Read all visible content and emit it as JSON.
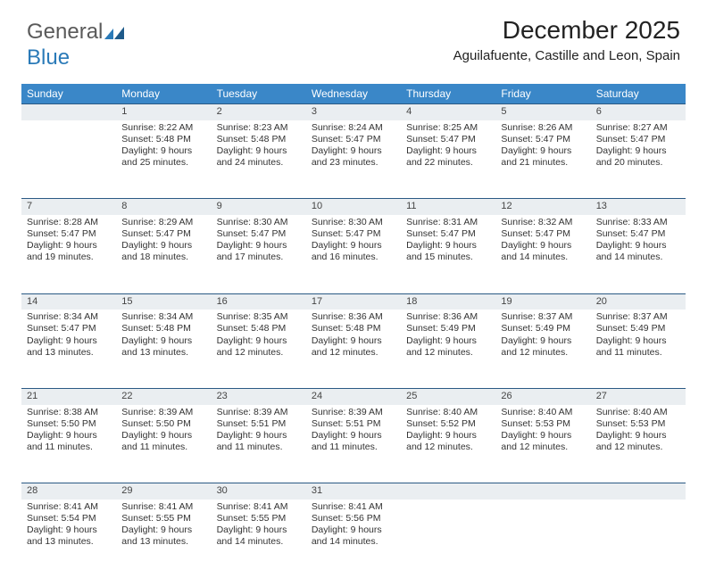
{
  "brand": {
    "part1": "General",
    "part2": "Blue"
  },
  "title": "December 2025",
  "location": "Aguilafuente, Castille and Leon, Spain",
  "colors": {
    "header_bg": "#3a87c8",
    "header_text": "#ffffff",
    "daynum_bg": "#eaeef1",
    "daynum_border": "#2b5a84",
    "body_bg": "#ffffff",
    "text": "#333333",
    "brand_gray": "#5a5a5a",
    "brand_blue": "#2a7ab8"
  },
  "typography": {
    "title_fontsize": 28,
    "location_fontsize": 15,
    "dayheader_fontsize": 12,
    "cell_fontsize": 10.5
  },
  "day_headers": [
    "Sunday",
    "Monday",
    "Tuesday",
    "Wednesday",
    "Thursday",
    "Friday",
    "Saturday"
  ],
  "weeks": [
    {
      "nums": [
        "",
        "1",
        "2",
        "3",
        "4",
        "5",
        "6"
      ],
      "cells": [
        {
          "sunrise": "",
          "sunset": "",
          "daylight": ""
        },
        {
          "sunrise": "Sunrise: 8:22 AM",
          "sunset": "Sunset: 5:48 PM",
          "daylight": "Daylight: 9 hours and 25 minutes."
        },
        {
          "sunrise": "Sunrise: 8:23 AM",
          "sunset": "Sunset: 5:48 PM",
          "daylight": "Daylight: 9 hours and 24 minutes."
        },
        {
          "sunrise": "Sunrise: 8:24 AM",
          "sunset": "Sunset: 5:47 PM",
          "daylight": "Daylight: 9 hours and 23 minutes."
        },
        {
          "sunrise": "Sunrise: 8:25 AM",
          "sunset": "Sunset: 5:47 PM",
          "daylight": "Daylight: 9 hours and 22 minutes."
        },
        {
          "sunrise": "Sunrise: 8:26 AM",
          "sunset": "Sunset: 5:47 PM",
          "daylight": "Daylight: 9 hours and 21 minutes."
        },
        {
          "sunrise": "Sunrise: 8:27 AM",
          "sunset": "Sunset: 5:47 PM",
          "daylight": "Daylight: 9 hours and 20 minutes."
        }
      ]
    },
    {
      "nums": [
        "7",
        "8",
        "9",
        "10",
        "11",
        "12",
        "13"
      ],
      "cells": [
        {
          "sunrise": "Sunrise: 8:28 AM",
          "sunset": "Sunset: 5:47 PM",
          "daylight": "Daylight: 9 hours and 19 minutes."
        },
        {
          "sunrise": "Sunrise: 8:29 AM",
          "sunset": "Sunset: 5:47 PM",
          "daylight": "Daylight: 9 hours and 18 minutes."
        },
        {
          "sunrise": "Sunrise: 8:30 AM",
          "sunset": "Sunset: 5:47 PM",
          "daylight": "Daylight: 9 hours and 17 minutes."
        },
        {
          "sunrise": "Sunrise: 8:30 AM",
          "sunset": "Sunset: 5:47 PM",
          "daylight": "Daylight: 9 hours and 16 minutes."
        },
        {
          "sunrise": "Sunrise: 8:31 AM",
          "sunset": "Sunset: 5:47 PM",
          "daylight": "Daylight: 9 hours and 15 minutes."
        },
        {
          "sunrise": "Sunrise: 8:32 AM",
          "sunset": "Sunset: 5:47 PM",
          "daylight": "Daylight: 9 hours and 14 minutes."
        },
        {
          "sunrise": "Sunrise: 8:33 AM",
          "sunset": "Sunset: 5:47 PM",
          "daylight": "Daylight: 9 hours and 14 minutes."
        }
      ]
    },
    {
      "nums": [
        "14",
        "15",
        "16",
        "17",
        "18",
        "19",
        "20"
      ],
      "cells": [
        {
          "sunrise": "Sunrise: 8:34 AM",
          "sunset": "Sunset: 5:47 PM",
          "daylight": "Daylight: 9 hours and 13 minutes."
        },
        {
          "sunrise": "Sunrise: 8:34 AM",
          "sunset": "Sunset: 5:48 PM",
          "daylight": "Daylight: 9 hours and 13 minutes."
        },
        {
          "sunrise": "Sunrise: 8:35 AM",
          "sunset": "Sunset: 5:48 PM",
          "daylight": "Daylight: 9 hours and 12 minutes."
        },
        {
          "sunrise": "Sunrise: 8:36 AM",
          "sunset": "Sunset: 5:48 PM",
          "daylight": "Daylight: 9 hours and 12 minutes."
        },
        {
          "sunrise": "Sunrise: 8:36 AM",
          "sunset": "Sunset: 5:49 PM",
          "daylight": "Daylight: 9 hours and 12 minutes."
        },
        {
          "sunrise": "Sunrise: 8:37 AM",
          "sunset": "Sunset: 5:49 PM",
          "daylight": "Daylight: 9 hours and 12 minutes."
        },
        {
          "sunrise": "Sunrise: 8:37 AM",
          "sunset": "Sunset: 5:49 PM",
          "daylight": "Daylight: 9 hours and 11 minutes."
        }
      ]
    },
    {
      "nums": [
        "21",
        "22",
        "23",
        "24",
        "25",
        "26",
        "27"
      ],
      "cells": [
        {
          "sunrise": "Sunrise: 8:38 AM",
          "sunset": "Sunset: 5:50 PM",
          "daylight": "Daylight: 9 hours and 11 minutes."
        },
        {
          "sunrise": "Sunrise: 8:39 AM",
          "sunset": "Sunset: 5:50 PM",
          "daylight": "Daylight: 9 hours and 11 minutes."
        },
        {
          "sunrise": "Sunrise: 8:39 AM",
          "sunset": "Sunset: 5:51 PM",
          "daylight": "Daylight: 9 hours and 11 minutes."
        },
        {
          "sunrise": "Sunrise: 8:39 AM",
          "sunset": "Sunset: 5:51 PM",
          "daylight": "Daylight: 9 hours and 11 minutes."
        },
        {
          "sunrise": "Sunrise: 8:40 AM",
          "sunset": "Sunset: 5:52 PM",
          "daylight": "Daylight: 9 hours and 12 minutes."
        },
        {
          "sunrise": "Sunrise: 8:40 AM",
          "sunset": "Sunset: 5:53 PM",
          "daylight": "Daylight: 9 hours and 12 minutes."
        },
        {
          "sunrise": "Sunrise: 8:40 AM",
          "sunset": "Sunset: 5:53 PM",
          "daylight": "Daylight: 9 hours and 12 minutes."
        }
      ]
    },
    {
      "nums": [
        "28",
        "29",
        "30",
        "31",
        "",
        "",
        ""
      ],
      "cells": [
        {
          "sunrise": "Sunrise: 8:41 AM",
          "sunset": "Sunset: 5:54 PM",
          "daylight": "Daylight: 9 hours and 13 minutes."
        },
        {
          "sunrise": "Sunrise: 8:41 AM",
          "sunset": "Sunset: 5:55 PM",
          "daylight": "Daylight: 9 hours and 13 minutes."
        },
        {
          "sunrise": "Sunrise: 8:41 AM",
          "sunset": "Sunset: 5:55 PM",
          "daylight": "Daylight: 9 hours and 14 minutes."
        },
        {
          "sunrise": "Sunrise: 8:41 AM",
          "sunset": "Sunset: 5:56 PM",
          "daylight": "Daylight: 9 hours and 14 minutes."
        },
        {
          "sunrise": "",
          "sunset": "",
          "daylight": ""
        },
        {
          "sunrise": "",
          "sunset": "",
          "daylight": ""
        },
        {
          "sunrise": "",
          "sunset": "",
          "daylight": ""
        }
      ]
    }
  ]
}
